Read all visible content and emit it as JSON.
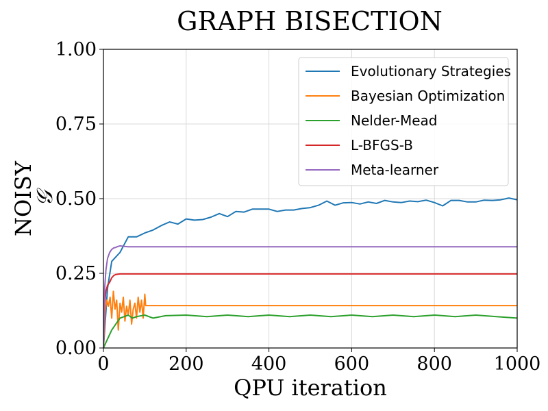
{
  "chart_data": {
    "type": "line",
    "title": "GRAPH BISECTION",
    "xlabel": "QPU iteration",
    "ylabel": "NOISY",
    "ylabel_symbol": "𝒢",
    "xlim": [
      0,
      1000
    ],
    "ylim": [
      0,
      1.0
    ],
    "xticks": [
      0,
      200,
      400,
      600,
      800,
      1000
    ],
    "xtick_labels": [
      "0",
      "200",
      "400",
      "600",
      "800",
      "1000"
    ],
    "yticks": [
      0,
      0.25,
      0.5,
      0.75,
      1.0
    ],
    "ytick_labels": [
      "0.00",
      "0.25",
      "0.50",
      "0.75",
      "1.00"
    ],
    "grid": true,
    "legend_position": "top-right",
    "series": [
      {
        "name": "Evolutionary Strategies",
        "color": "#1f77b4",
        "x": [
          0,
          10,
          20,
          40,
          60,
          80,
          100,
          120,
          140,
          160,
          180,
          200,
          220,
          240,
          260,
          280,
          300,
          320,
          340,
          360,
          380,
          400,
          420,
          440,
          460,
          480,
          500,
          520,
          540,
          560,
          580,
          600,
          620,
          640,
          660,
          680,
          700,
          720,
          740,
          760,
          780,
          800,
          820,
          840,
          860,
          880,
          900,
          920,
          940,
          960,
          980,
          1000
        ],
        "y": [
          0.0,
          0.2,
          0.29,
          0.32,
          0.372,
          0.372,
          0.385,
          0.395,
          0.41,
          0.422,
          0.415,
          0.432,
          0.428,
          0.43,
          0.438,
          0.45,
          0.44,
          0.457,
          0.455,
          0.465,
          0.465,
          0.465,
          0.457,
          0.462,
          0.462,
          0.467,
          0.47,
          0.478,
          0.492,
          0.478,
          0.486,
          0.487,
          0.482,
          0.489,
          0.484,
          0.494,
          0.489,
          0.487,
          0.492,
          0.49,
          0.495,
          0.487,
          0.476,
          0.494,
          0.494,
          0.489,
          0.489,
          0.495,
          0.494,
          0.496,
          0.502,
          0.496
        ]
      },
      {
        "name": "Bayesian Optimization",
        "color": "#ff7f0e",
        "x": [
          0,
          4,
          8,
          12,
          16,
          20,
          24,
          28,
          32,
          36,
          40,
          44,
          48,
          52,
          56,
          60,
          64,
          68,
          72,
          76,
          80,
          84,
          88,
          92,
          96,
          100,
          102,
          110,
          200,
          400,
          600,
          800,
          1000
        ],
        "y": [
          0.0,
          0.12,
          0.16,
          0.14,
          0.17,
          0.1,
          0.19,
          0.13,
          0.16,
          0.06,
          0.15,
          0.12,
          0.17,
          0.09,
          0.14,
          0.11,
          0.16,
          0.08,
          0.13,
          0.15,
          0.1,
          0.17,
          0.12,
          0.16,
          0.1,
          0.18,
          0.142,
          0.142,
          0.142,
          0.142,
          0.142,
          0.142,
          0.142
        ]
      },
      {
        "name": "Nelder-Mead",
        "color": "#2ca02c",
        "x": [
          0,
          10,
          20,
          30,
          40,
          50,
          60,
          70,
          80,
          100,
          120,
          150,
          200,
          250,
          300,
          350,
          400,
          450,
          500,
          550,
          600,
          650,
          700,
          750,
          800,
          850,
          900,
          950,
          1000
        ],
        "y": [
          0.0,
          0.03,
          0.06,
          0.08,
          0.1,
          0.105,
          0.11,
          0.1,
          0.105,
          0.11,
          0.1,
          0.108,
          0.11,
          0.105,
          0.11,
          0.105,
          0.11,
          0.105,
          0.11,
          0.105,
          0.11,
          0.105,
          0.11,
          0.105,
          0.11,
          0.105,
          0.11,
          0.105,
          0.1
        ]
      },
      {
        "name": "L-BFGS-B",
        "color": "#d62728",
        "x": [
          0,
          3,
          6,
          10,
          15,
          20,
          25,
          30,
          40,
          60,
          100,
          200,
          400,
          600,
          800,
          1000
        ],
        "y": [
          0.0,
          0.15,
          0.19,
          0.21,
          0.22,
          0.235,
          0.243,
          0.246,
          0.248,
          0.248,
          0.248,
          0.248,
          0.248,
          0.248,
          0.248,
          0.248
        ]
      },
      {
        "name": "Meta-learner",
        "color": "#9467bd",
        "x": [
          0,
          3,
          6,
          10,
          15,
          20,
          25,
          30,
          35,
          40,
          50,
          60,
          100,
          200,
          400,
          600,
          800,
          1000
        ],
        "y": [
          0.0,
          0.2,
          0.26,
          0.3,
          0.32,
          0.33,
          0.335,
          0.337,
          0.34,
          0.342,
          0.34,
          0.339,
          0.339,
          0.339,
          0.339,
          0.339,
          0.339,
          0.339
        ]
      }
    ]
  }
}
